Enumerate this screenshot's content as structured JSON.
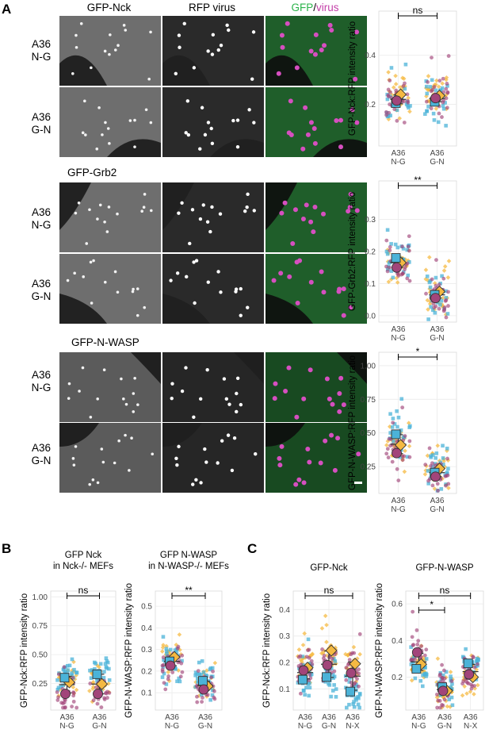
{
  "panels": {
    "A": {
      "letter": "A",
      "col_headers": {
        "gfp": "GFP-Nck",
        "rfp": "RFP virus",
        "merge_gfp": "GFP",
        "merge_sep": "/",
        "merge_virus": "virus"
      },
      "section_labels": {
        "grb2": "GFP-Grb2",
        "nwasp": "GFP-N-WASP"
      },
      "row_labels": {
        "ng_1": "A36",
        "ng_2": "N-G",
        "gn_1": "A36",
        "gn_2": "G-N"
      }
    },
    "B": {
      "letter": "B"
    },
    "C": {
      "letter": "C"
    }
  },
  "colors": {
    "orange": "#f5b942",
    "cyan": "#4bb3d8",
    "purple": "#a2457a",
    "gfp_green": "#2bb34a",
    "virus_magenta": "#c43fa8"
  },
  "chart_data": [
    {
      "id": "A1",
      "type": "scatter",
      "ylabel": "GFP-Nck:RFP intensity ratio",
      "categories": [
        [
          "A36",
          "N-G"
        ],
        [
          "A36",
          "G-N"
        ]
      ],
      "ylim": [
        0.03,
        0.58
      ],
      "yticks": [
        0.2,
        0.4
      ],
      "yticklabels": [
        "0.2",
        "0.4"
      ],
      "replicate_means": {
        "orange": [
          0.24,
          0.235
        ],
        "cyan": [
          0.205,
          0.21
        ],
        "purple": [
          0.215,
          0.225
        ]
      },
      "significance": [
        {
          "from": 0,
          "to": 1,
          "label": "ns"
        }
      ]
    },
    {
      "id": "A2",
      "type": "scatter",
      "ylabel": "GFP-Grb2:RFP intensity ratio",
      "categories": [
        [
          "A36",
          "N-G"
        ],
        [
          "A36",
          "G-N"
        ]
      ],
      "ylim": [
        -0.02,
        0.42
      ],
      "yticks": [
        0.0,
        0.1,
        0.2,
        0.3
      ],
      "yticklabels": [
        "0.0",
        "0.1",
        "0.2",
        "0.3"
      ],
      "replicate_means": {
        "orange": [
          0.165,
          0.075
        ],
        "cyan": [
          0.18,
          0.065
        ],
        "purple": [
          0.15,
          0.055
        ]
      },
      "significance": [
        {
          "from": 0,
          "to": 1,
          "label": "**"
        }
      ]
    },
    {
      "id": "A3",
      "type": "scatter",
      "ylabel": "GFP-N-WASP:RFP intensity ratio",
      "categories": [
        [
          "A36",
          "N-G"
        ],
        [
          "A36",
          "G-N"
        ]
      ],
      "ylim": [
        0.05,
        1.1
      ],
      "yticks": [
        0.25,
        0.5,
        0.75,
        1.0
      ],
      "yticklabels": [
        "0.25",
        "0.50",
        "0.75",
        "1.00"
      ],
      "replicate_means": {
        "orange": [
          0.41,
          0.235
        ],
        "cyan": [
          0.49,
          0.205
        ],
        "purple": [
          0.35,
          0.175
        ]
      },
      "significance": [
        {
          "from": 0,
          "to": 1,
          "label": "*"
        }
      ]
    },
    {
      "id": "B1",
      "type": "scatter",
      "title": "GFP Nck",
      "subtitle": "in Nck-/- MEFs",
      "ylabel": "GFP-Nck:RFP intensity ratio",
      "categories": [
        [
          "A36",
          "N-G"
        ],
        [
          "A36",
          "G-N"
        ]
      ],
      "ylim": [
        0.02,
        1.05
      ],
      "yticks": [
        0.25,
        0.5,
        0.75,
        1.0
      ],
      "yticklabels": [
        "0.25",
        "0.50",
        "0.75",
        "1.00"
      ],
      "replicate_means": {
        "orange": [
          0.26,
          0.245
        ],
        "cyan": [
          0.3,
          0.33
        ],
        "purple": [
          0.16,
          0.16
        ]
      },
      "significance": [
        {
          "from": 0,
          "to": 1,
          "label": "ns"
        }
      ]
    },
    {
      "id": "B2",
      "type": "scatter",
      "title": "GFP N-WASP",
      "subtitle": "in N-WASP-/- MEFs",
      "ylabel": "GFP-N-WASP:RFP intensity ratio",
      "categories": [
        [
          "A36",
          "N-G"
        ],
        [
          "A36",
          "G-N"
        ]
      ],
      "ylim": [
        0.02,
        0.57
      ],
      "yticks": [
        0.1,
        0.2,
        0.3,
        0.4,
        0.5
      ],
      "yticklabels": [
        "0.1",
        "0.2",
        "0.3",
        "0.4",
        "0.5"
      ],
      "replicate_means": {
        "orange": [
          0.265,
          0.13
        ],
        "cyan": [
          0.245,
          0.155
        ],
        "purple": [
          0.225,
          0.115
        ]
      },
      "significance": [
        {
          "from": 0,
          "to": 1,
          "label": "**"
        }
      ]
    },
    {
      "id": "C1",
      "type": "scatter",
      "title": "GFP-Nck",
      "ylabel": "GFP-Nck:RFP intensity ratio",
      "categories": [
        [
          "A36",
          "N-G"
        ],
        [
          "A36",
          "G-N"
        ],
        [
          "A36",
          "N-X"
        ]
      ],
      "ylim": [
        0.02,
        0.47
      ],
      "yticks": [
        0.1,
        0.2,
        0.3,
        0.4
      ],
      "yticklabels": [
        "0.1",
        "0.2",
        "0.3",
        "0.4"
      ],
      "replicate_means": {
        "orange": [
          0.18,
          0.245,
          0.195
        ],
        "cyan": [
          0.135,
          0.145,
          0.09
        ],
        "purple": [
          0.17,
          0.19,
          0.16
        ]
      },
      "significance": [
        {
          "from": 0,
          "to": 2,
          "label": "ns"
        }
      ]
    },
    {
      "id": "C2",
      "type": "scatter",
      "title": "GFP-N-WASP",
      "ylabel": "GFP-N-WASP:RFP intensity ratio",
      "categories": [
        [
          "A36",
          "N-G"
        ],
        [
          "A36",
          "G-N"
        ],
        [
          "A36",
          "N-X"
        ]
      ],
      "ylim": [
        0.02,
        0.67
      ],
      "yticks": [
        0.2,
        0.4,
        0.6
      ],
      "yticklabels": [
        "0.2",
        "0.4",
        "0.6"
      ],
      "replicate_means": {
        "orange": [
          0.27,
          0.125,
          0.2
        ],
        "cyan": [
          0.245,
          0.145,
          0.275
        ],
        "purple": [
          0.335,
          0.125,
          0.215
        ]
      },
      "significance": [
        {
          "from": 0,
          "to": 2,
          "label": "ns",
          "level": 2
        },
        {
          "from": 0,
          "to": 1,
          "label": "*",
          "level": 1
        }
      ]
    }
  ]
}
